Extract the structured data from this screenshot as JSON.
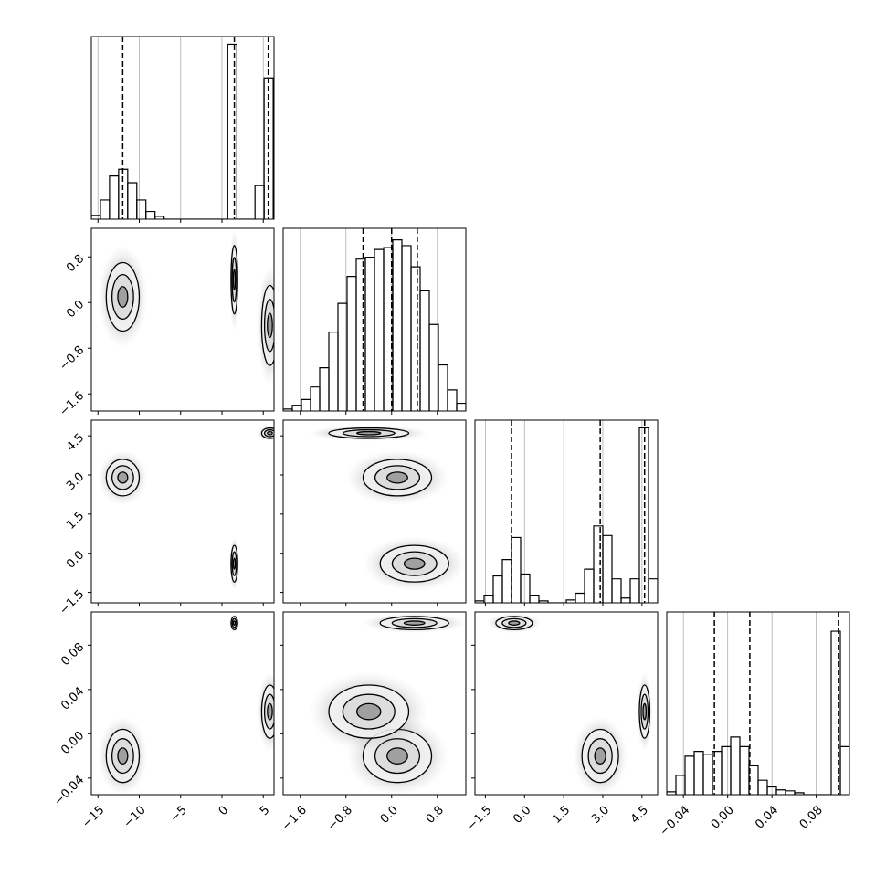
{
  "chart_data": {
    "type": "corner",
    "params": [
      {
        "lim": [
          -15.8,
          6.3
        ],
        "ticks": [
          {
            "value": -15,
            "label": "−15"
          },
          {
            "value": -10,
            "label": "−10"
          },
          {
            "value": -5,
            "label": "−5"
          },
          0,
          5
        ],
        "bins": [
          -15.8,
          -14.7,
          -13.6,
          -12.5,
          -11.4,
          -10.3,
          -9.2,
          -8.1,
          -7.0,
          -5.9,
          -4.8,
          -3.7,
          -2.6,
          -1.5,
          -0.4,
          0.7,
          1.8,
          2.9,
          4.0,
          5.1,
          6.2
        ],
        "counts": [
          4,
          20,
          45,
          52,
          38,
          20,
          8,
          3,
          0,
          0,
          0,
          0,
          0,
          0,
          0,
          182,
          0,
          0,
          35,
          147
        ],
        "quantiles": [
          -12,
          1.5,
          5.6
        ]
      },
      {
        "lim": [
          -1.9,
          1.3
        ],
        "ticks": [
          {
            "value": -1.6,
            "label": "−1.6"
          },
          {
            "value": -0.8,
            "label": "−0.8"
          },
          {
            "value": 0,
            "label": "0.0"
          },
          0.8
        ],
        "bins": [
          -1.9,
          -1.74,
          -1.58,
          -1.42,
          -1.26,
          -1.1,
          -0.94,
          -0.78,
          -0.62,
          -0.46,
          -0.3,
          -0.14,
          0.02,
          0.18,
          0.34,
          0.5,
          0.66,
          0.82,
          0.98,
          1.14,
          1.3
        ],
        "counts": [
          2,
          6,
          12,
          25,
          45,
          82,
          112,
          140,
          158,
          160,
          168,
          170,
          178,
          172,
          150,
          125,
          90,
          48,
          22,
          8
        ],
        "quantiles": [
          -0.5,
          0.0,
          0.45
        ]
      },
      {
        "lim": [
          -1.9,
          5.1
        ],
        "ticks": [
          {
            "value": -1.5,
            "label": "−1.5"
          },
          {
            "value": 0,
            "label": "0.0"
          },
          1.5,
          {
            "value": 3,
            "label": "3.0"
          },
          4.5
        ],
        "bins": [
          -1.9,
          -1.55,
          -1.2,
          -0.85,
          -0.5,
          -0.15,
          0.2,
          0.55,
          0.9,
          1.25,
          1.6,
          1.95,
          2.3,
          2.65,
          3.0,
          3.35,
          3.7,
          4.05,
          4.4,
          4.75,
          5.1
        ],
        "counts": [
          2,
          8,
          28,
          45,
          68,
          30,
          8,
          2,
          0,
          0,
          3,
          10,
          35,
          80,
          70,
          25,
          5,
          25,
          182,
          25
        ],
        "quantiles": [
          -0.5,
          2.9,
          4.6
        ]
      },
      {
        "lim": [
          -0.055,
          0.11
        ],
        "ticks": [
          {
            "value": -0.04,
            "label": "−0.04"
          },
          {
            "value": 0,
            "label": "0.00"
          },
          0.04,
          0.08
        ],
        "bins": [
          -0.055,
          -0.04675,
          -0.0385,
          -0.03025,
          -0.022,
          -0.01375,
          -0.0055,
          0.00275,
          0.011,
          0.01925,
          0.0275,
          0.03575,
          0.044,
          0.05225,
          0.0605,
          0.06875,
          0.077,
          0.08525,
          0.0935,
          0.10175,
          0.11
        ],
        "counts": [
          3,
          20,
          40,
          45,
          42,
          45,
          50,
          60,
          50,
          30,
          15,
          8,
          5,
          4,
          2,
          0,
          0,
          0,
          170,
          50
        ],
        "quantiles": [
          -0.012,
          0.02,
          0.1
        ]
      }
    ],
    "hist_ylim": [
      0,
      190
    ],
    "modes": [
      {
        "center": [
          -12,
          0.1,
          2.9,
          -0.02
        ],
        "spread": [
          1.0,
          0.3,
          0.35,
          0.012
        ]
      },
      {
        "center": [
          1.5,
          0.4,
          -0.4,
          0.1
        ],
        "spread": [
          0.2,
          0.3,
          0.35,
          0.003
        ]
      },
      {
        "center": [
          5.8,
          -0.4,
          4.6,
          0.02
        ],
        "spread": [
          0.5,
          0.35,
          0.1,
          0.012
        ]
      }
    ]
  }
}
